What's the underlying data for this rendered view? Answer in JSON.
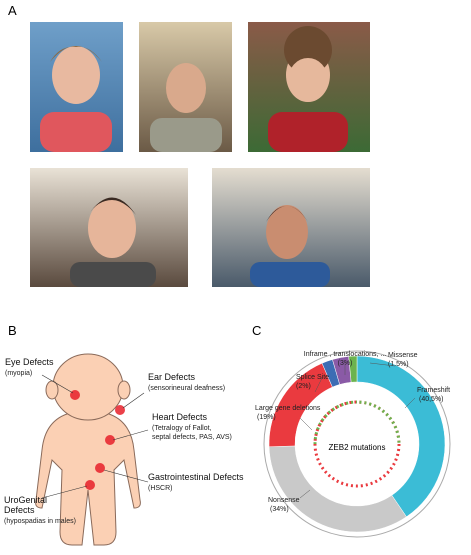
{
  "panel_labels": [
    "A",
    "B",
    "C"
  ],
  "body_diagram": {
    "labels": [
      {
        "title_lines": [
          "Eye Defects"
        ],
        "detail_lines": [
          "(myopia)"
        ]
      },
      {
        "title_lines": [
          "Ear Defects"
        ],
        "detail_lines": [
          "(sensorineural deafness)"
        ]
      },
      {
        "title_lines": [
          "Heart Defects"
        ],
        "detail_lines": [
          "(Tetralogy of Fallot,",
          "septal defects, PAS, AVS)"
        ]
      },
      {
        "title_lines": [
          "Gastrointestinal Defects"
        ],
        "detail_lines": [
          "(HSCR)"
        ]
      },
      {
        "title_lines": [
          "UroGenital",
          "Defects"
        ],
        "detail_lines": [
          "(hypospadias in males)"
        ]
      }
    ]
  },
  "chart_data": {
    "type": "donut",
    "center_label": "ZEB2 mutations",
    "categories": [
      "Frameshift",
      "Nonsense",
      "Large gene deletions",
      "Splice Site",
      "Inframe , translocations, ...",
      "Missense"
    ],
    "values": [
      40.5,
      34,
      19,
      2,
      3,
      1.5
    ],
    "value_labels": [
      "(40,5%)",
      "(34%)",
      "(19%)",
      "(2%)",
      "(3%)",
      "(1.5%)"
    ],
    "colors": [
      "#3bbcd6",
      "#c9c9c9",
      "#ea3a3f",
      "#3d6db4",
      "#8a5aa6",
      "#6cb34e"
    ]
  }
}
